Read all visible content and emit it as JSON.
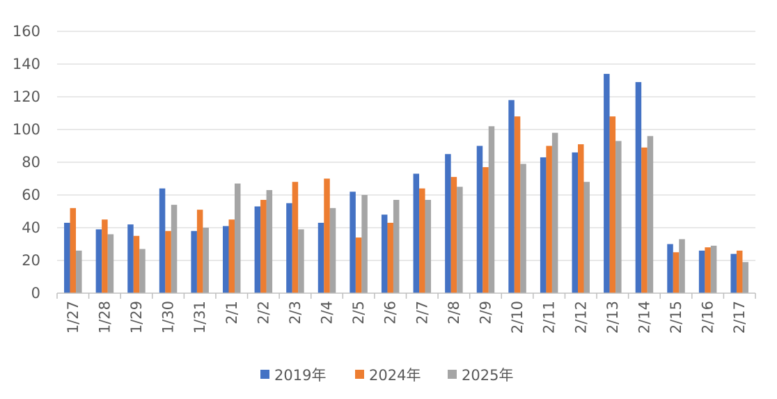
{
  "chart_data": {
    "type": "bar",
    "categories": [
      "1/27",
      "1/28",
      "1/29",
      "1/30",
      "1/31",
      "2/1",
      "2/2",
      "2/3",
      "2/4",
      "2/5",
      "2/6",
      "2/7",
      "2/8",
      "2/9",
      "2/10",
      "2/11",
      "2/12",
      "2/13",
      "2/14",
      "2/15",
      "2/16",
      "2/17"
    ],
    "series": [
      {
        "name": "2019年",
        "color": "#4472C4",
        "values": [
          43,
          39,
          42,
          64,
          38,
          41,
          53,
          55,
          43,
          62,
          48,
          73,
          85,
          90,
          118,
          83,
          86,
          134,
          129,
          30,
          26,
          24
        ]
      },
      {
        "name": "2024年",
        "color": "#ED7D31",
        "values": [
          52,
          45,
          35,
          38,
          51,
          45,
          57,
          68,
          70,
          34,
          43,
          64,
          71,
          77,
          108,
          90,
          91,
          108,
          89,
          25,
          28,
          26
        ]
      },
      {
        "name": "2025年",
        "color": "#A5A5A5",
        "values": [
          26,
          36,
          27,
          54,
          40,
          67,
          63,
          39,
          52,
          60,
          57,
          57,
          65,
          102,
          79,
          98,
          68,
          93,
          96,
          33,
          29,
          19
        ]
      }
    ],
    "y_ticks": [
      "0",
      "20",
      "40",
      "60",
      "80",
      "100",
      "120",
      "140",
      "160"
    ],
    "ylim": [
      0,
      160
    ],
    "grid": true,
    "legend_position": "bottom",
    "title": "",
    "xlabel": "",
    "ylabel": ""
  }
}
